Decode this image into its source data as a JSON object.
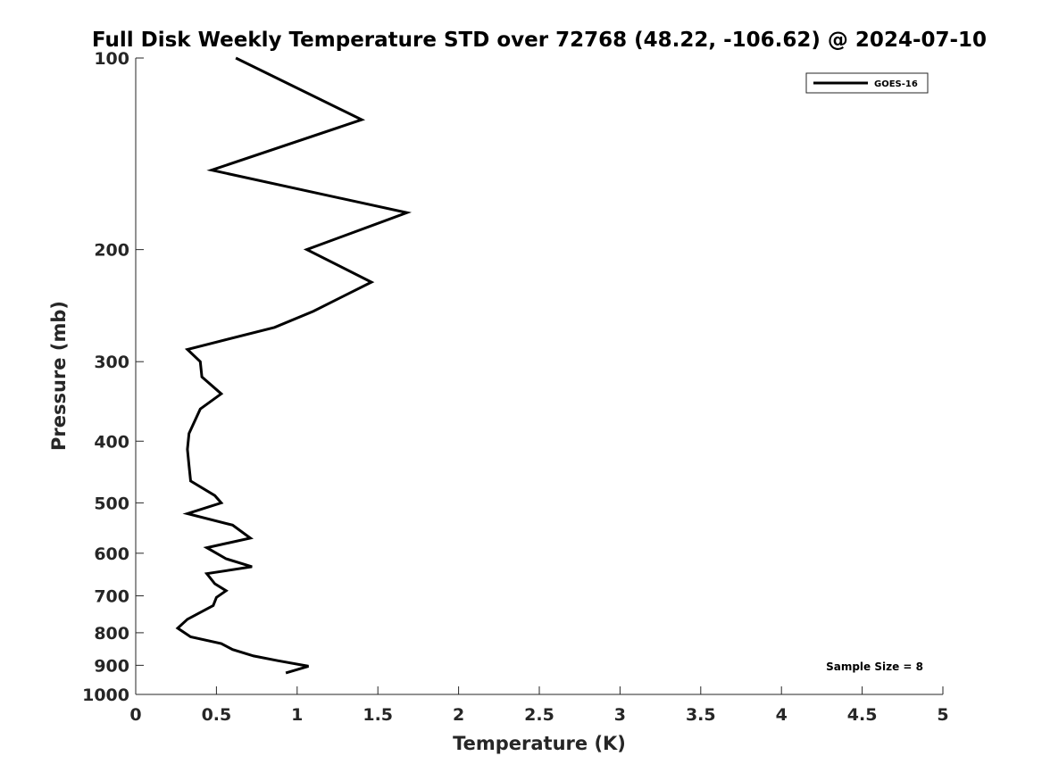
{
  "chart_data": {
    "type": "line",
    "title": "Full Disk Weekly Temperature STD over 72768 (48.22, -106.62) @ 2024-07-10",
    "xlabel": "Temperature (K)",
    "ylabel": "Pressure (mb)",
    "xlim": [
      0,
      5
    ],
    "ylim": [
      100,
      1000
    ],
    "y_scale": "log",
    "y_reversed": true,
    "grid": false,
    "legend_position": "top-right",
    "x_ticks": [
      0,
      0.5,
      1,
      1.5,
      2,
      2.5,
      3,
      3.5,
      4,
      4.5,
      5
    ],
    "x_tick_labels": [
      "0",
      "0.5",
      "1",
      "1.5",
      "2",
      "2.5",
      "3",
      "3.5",
      "4",
      "4.5",
      "5"
    ],
    "y_ticks": [
      100,
      200,
      300,
      400,
      500,
      600,
      700,
      800,
      900,
      1000
    ],
    "y_tick_labels": [
      "100",
      "200",
      "300",
      "400",
      "500",
      "600",
      "700",
      "800",
      "900",
      "1000"
    ],
    "series": [
      {
        "name": "GOES-16",
        "color": "#000000",
        "points": [
          {
            "x": 0.62,
            "pressure": 100
          },
          {
            "x": 1.4,
            "pressure": 125
          },
          {
            "x": 0.47,
            "pressure": 150
          },
          {
            "x": 1.68,
            "pressure": 175
          },
          {
            "x": 1.06,
            "pressure": 200
          },
          {
            "x": 1.46,
            "pressure": 225
          },
          {
            "x": 1.1,
            "pressure": 250
          },
          {
            "x": 0.86,
            "pressure": 265
          },
          {
            "x": 0.32,
            "pressure": 287
          },
          {
            "x": 0.4,
            "pressure": 300
          },
          {
            "x": 0.41,
            "pressure": 317
          },
          {
            "x": 0.53,
            "pressure": 337
          },
          {
            "x": 0.4,
            "pressure": 356
          },
          {
            "x": 0.33,
            "pressure": 389
          },
          {
            "x": 0.32,
            "pressure": 412
          },
          {
            "x": 0.33,
            "pressure": 437
          },
          {
            "x": 0.34,
            "pressure": 462
          },
          {
            "x": 0.49,
            "pressure": 487
          },
          {
            "x": 0.53,
            "pressure": 500
          },
          {
            "x": 0.32,
            "pressure": 520
          },
          {
            "x": 0.6,
            "pressure": 542
          },
          {
            "x": 0.71,
            "pressure": 568
          },
          {
            "x": 0.44,
            "pressure": 588
          },
          {
            "x": 0.56,
            "pressure": 612
          },
          {
            "x": 0.72,
            "pressure": 630
          },
          {
            "x": 0.44,
            "pressure": 646
          },
          {
            "x": 0.49,
            "pressure": 670
          },
          {
            "x": 0.56,
            "pressure": 687
          },
          {
            "x": 0.5,
            "pressure": 704
          },
          {
            "x": 0.48,
            "pressure": 725
          },
          {
            "x": 0.32,
            "pressure": 762
          },
          {
            "x": 0.26,
            "pressure": 787
          },
          {
            "x": 0.34,
            "pressure": 812
          },
          {
            "x": 0.53,
            "pressure": 832
          },
          {
            "x": 0.6,
            "pressure": 850
          },
          {
            "x": 0.73,
            "pressure": 870
          },
          {
            "x": 0.88,
            "pressure": 885
          },
          {
            "x": 1.07,
            "pressure": 903
          },
          {
            "x": 0.93,
            "pressure": 925
          }
        ]
      }
    ],
    "annotations": [
      "Sample Size = 8"
    ]
  }
}
